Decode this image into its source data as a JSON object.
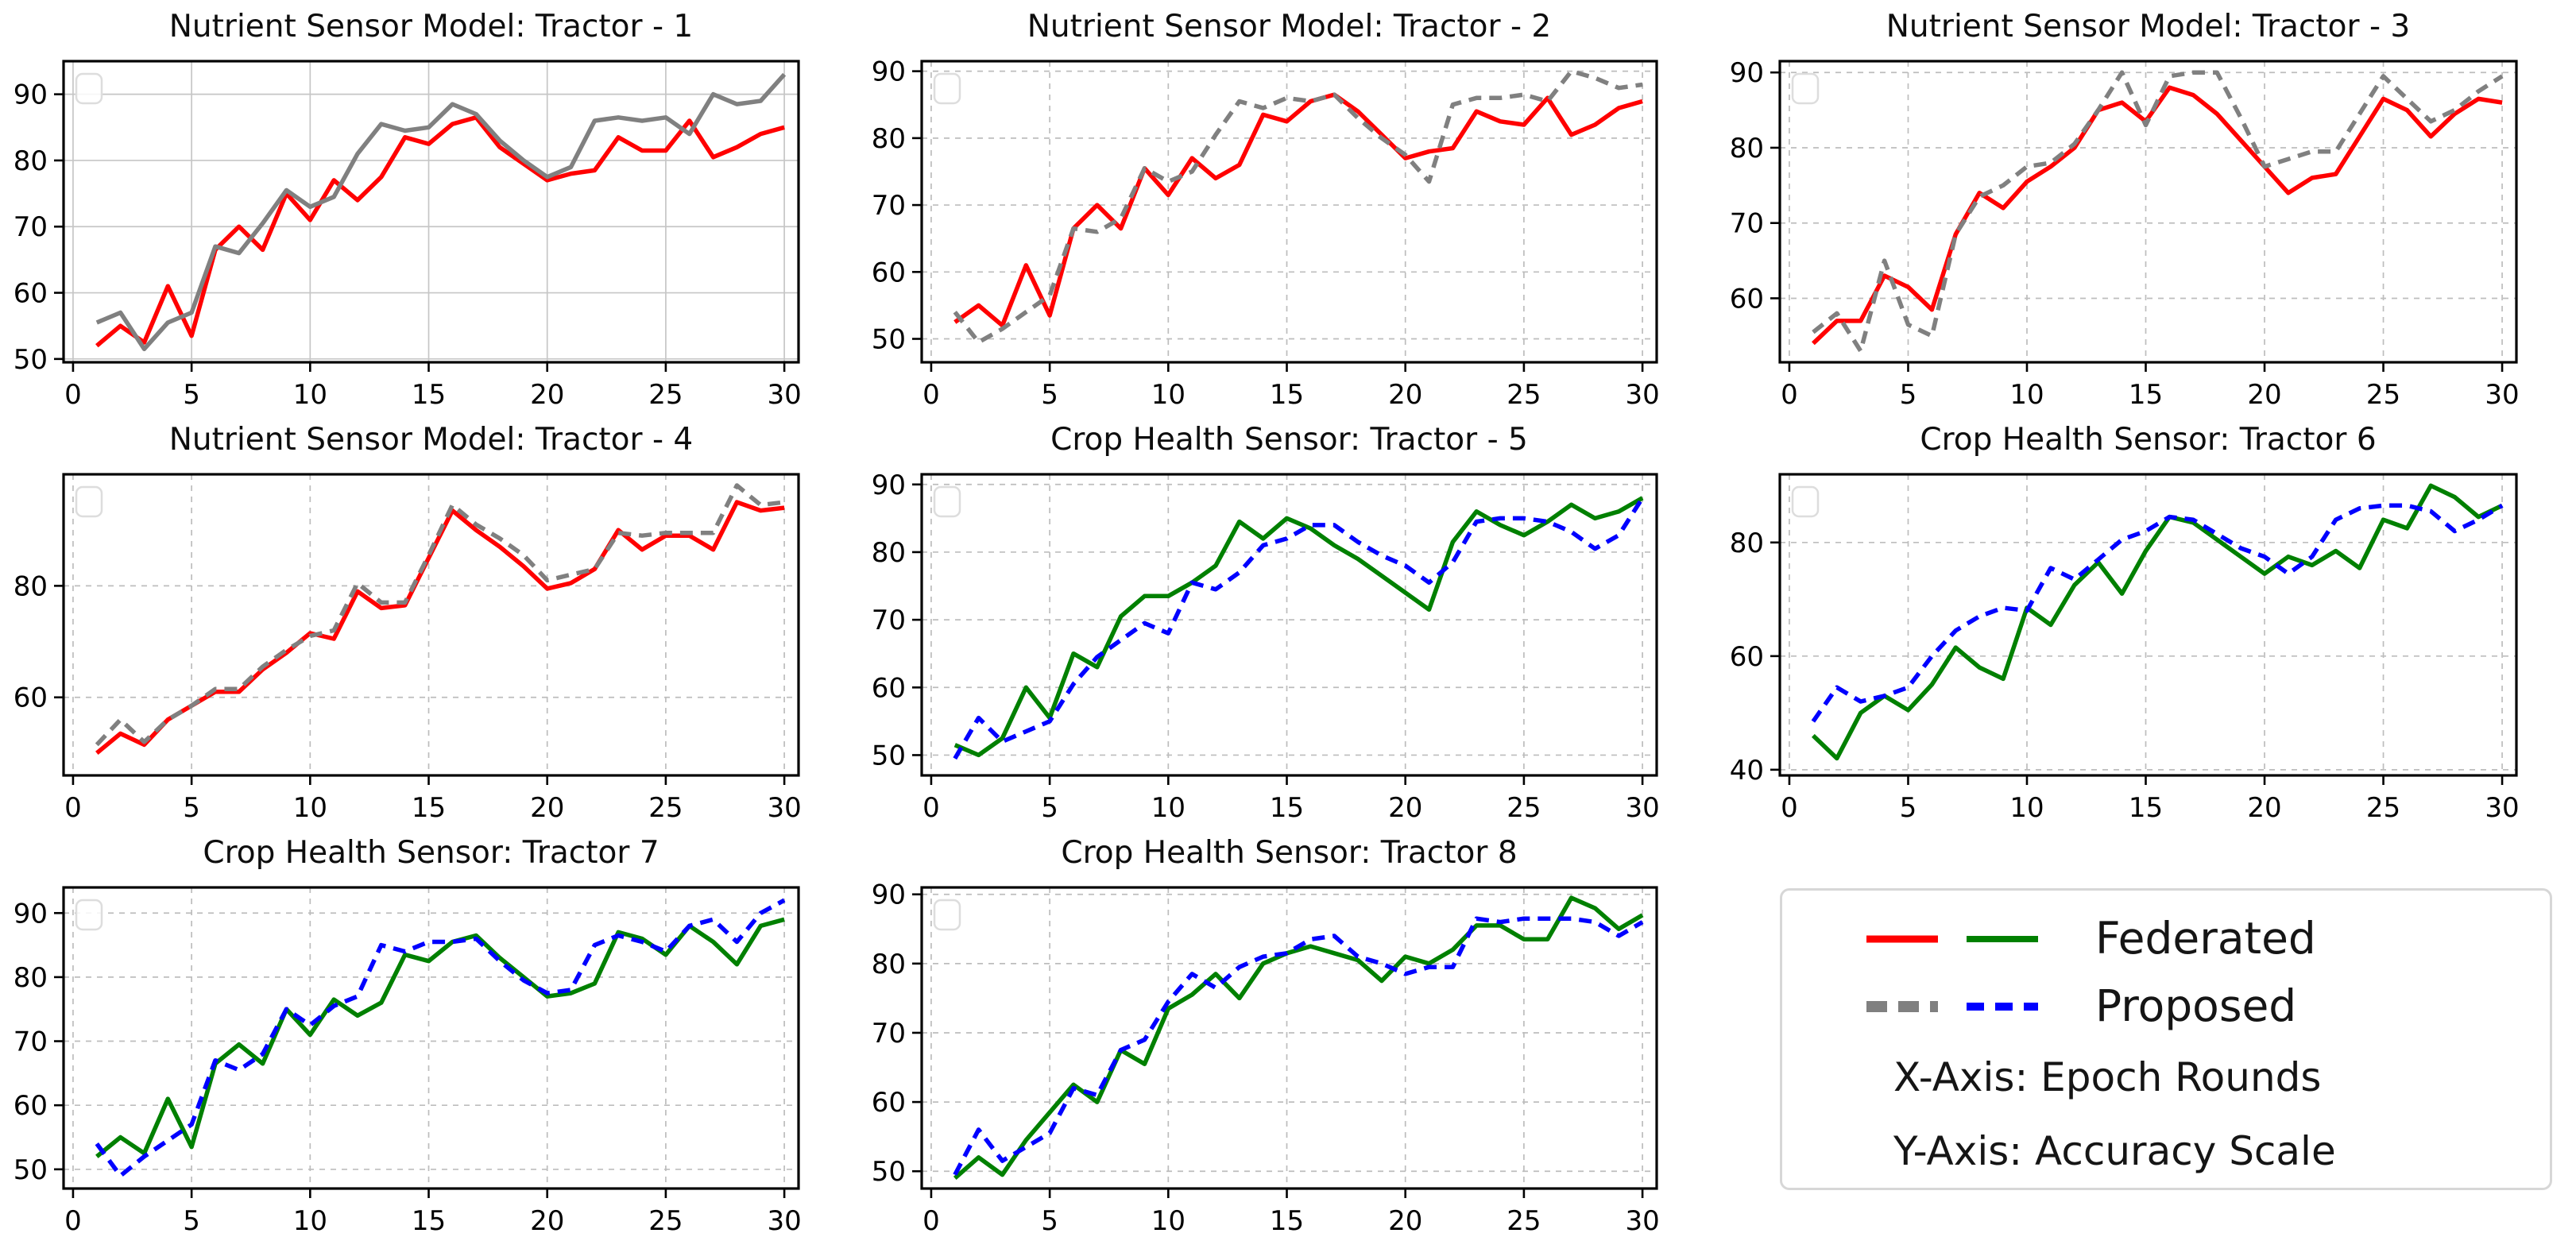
{
  "figure": {
    "x_values": [
      1,
      2,
      3,
      4,
      5,
      6,
      7,
      8,
      9,
      10,
      11,
      12,
      13,
      14,
      15,
      16,
      17,
      18,
      19,
      20,
      21,
      22,
      23,
      24,
      25,
      26,
      27,
      28,
      29,
      30
    ],
    "xticks": [
      0,
      5,
      10,
      15,
      20,
      25,
      30
    ]
  },
  "legend": {
    "federated_label": "Federated",
    "proposed_label": "Proposed",
    "xaxis_note": "X-Axis: Epoch Rounds",
    "yaxis_note": "Y-Axis: Accuracy Scale",
    "federated_color_nutrient": "#ff0000",
    "federated_color_crop": "#008000",
    "proposed_color_nutrient": "#808080",
    "proposed_color_crop": "#0000ff"
  },
  "chart_data": [
    {
      "type": "line",
      "title": "Nutrient Sensor Model: Tractor - 1",
      "ylim": [
        49.5,
        95
      ],
      "yticks": [
        50,
        60,
        70,
        80,
        90
      ],
      "xticks": [
        0,
        5,
        10,
        15,
        20,
        25,
        30
      ],
      "xlim": [
        -0.4,
        30.6
      ],
      "grid_style": "solid",
      "series": [
        {
          "name": "Federated",
          "color": "#ff0000",
          "dash": false,
          "values": [
            52,
            55,
            52.5,
            61,
            53.5,
            66.5,
            70,
            66.5,
            75,
            71,
            77,
            74,
            77.5,
            83.5,
            82.5,
            85.5,
            86.5,
            82,
            79.5,
            77,
            78,
            78.5,
            83.5,
            81.5,
            81.5,
            86,
            80.5,
            82,
            84,
            85
          ]
        },
        {
          "name": "Proposed",
          "color": "#808080",
          "dash": false,
          "values": [
            55.5,
            57,
            51.5,
            55.5,
            57,
            67,
            66,
            70.5,
            75.5,
            73,
            74.5,
            81,
            85.5,
            84.5,
            85,
            88.5,
            87,
            83,
            80,
            77.5,
            79,
            86,
            86.5,
            86,
            86.5,
            84,
            90,
            88.5,
            89,
            93
          ]
        }
      ]
    },
    {
      "type": "line",
      "title": "Nutrient Sensor Model: Tractor - 2",
      "ylim": [
        46.5,
        91.5
      ],
      "yticks": [
        50,
        60,
        70,
        80,
        90
      ],
      "xticks": [
        0,
        5,
        10,
        15,
        20,
        25,
        30
      ],
      "xlim": [
        -0.4,
        30.6
      ],
      "grid_style": "dashed",
      "series": [
        {
          "name": "Federated",
          "color": "#ff0000",
          "dash": false,
          "values": [
            52.5,
            55,
            52,
            61,
            53.5,
            66.5,
            70,
            66.5,
            75.5,
            71.5,
            77,
            74,
            76,
            83.5,
            82.5,
            85.5,
            86.5,
            84,
            80.5,
            77,
            78,
            78.5,
            84,
            82.5,
            82,
            86,
            80.5,
            82,
            84.5,
            85.5
          ]
        },
        {
          "name": "Proposed",
          "color": "#808080",
          "dash": true,
          "values": [
            54,
            49.5,
            51.5,
            54,
            56.5,
            66.5,
            66,
            68,
            75.5,
            73.5,
            75,
            80.5,
            85.5,
            84.5,
            86,
            85.5,
            86.5,
            83,
            80,
            77.5,
            73.5,
            85,
            86,
            86,
            86.5,
            85.5,
            90,
            89,
            87.5,
            88
          ]
        }
      ]
    },
    {
      "type": "line",
      "title": "Nutrient Sensor Model: Tractor - 3",
      "ylim": [
        51.5,
        91.5
      ],
      "yticks": [
        60,
        70,
        80,
        90
      ],
      "xticks": [
        0,
        5,
        10,
        15,
        20,
        25,
        30
      ],
      "xlim": [
        -0.4,
        30.6
      ],
      "grid_style": "dashed",
      "series": [
        {
          "name": "Federated",
          "color": "#ff0000",
          "dash": false,
          "values": [
            54,
            57,
            57,
            63,
            61.5,
            58.5,
            68.5,
            74,
            72,
            75.5,
            77.5,
            80,
            85,
            86,
            83.5,
            88,
            87,
            84.5,
            81,
            77.5,
            74,
            76,
            76.5,
            81.5,
            86.5,
            85,
            81.5,
            84.5,
            86.5,
            86
          ]
        },
        {
          "name": "Proposed",
          "color": "#808080",
          "dash": true,
          "values": [
            55.5,
            58,
            53,
            65,
            56.5,
            55,
            68.5,
            73.5,
            75,
            77.5,
            78,
            80.5,
            85,
            90,
            83,
            89.5,
            90,
            90,
            84,
            77.5,
            78.5,
            79.5,
            79.5,
            84.5,
            89.5,
            86.5,
            83.5,
            85,
            87.5,
            89.5
          ]
        }
      ]
    },
    {
      "type": "line",
      "title": "Nutrient Sensor Model: Tractor - 4",
      "ylim": [
        46,
        100
      ],
      "yticks": [
        60,
        80
      ],
      "xticks": [
        0,
        5,
        10,
        15,
        20,
        25,
        30
      ],
      "xlim": [
        -0.4,
        30.6
      ],
      "grid_style": "dashed",
      "series": [
        {
          "name": "Federated",
          "color": "#ff0000",
          "dash": false,
          "values": [
            50,
            53.5,
            51.5,
            56,
            58.5,
            61,
            61,
            65,
            68,
            71.5,
            70.5,
            79,
            76,
            76.5,
            85,
            93.5,
            90,
            87,
            83.5,
            79.5,
            80.5,
            83,
            90,
            86.5,
            89,
            89,
            86.5,
            95,
            93.5,
            94
          ]
        },
        {
          "name": "Proposed",
          "color": "#808080",
          "dash": true,
          "values": [
            51.5,
            56,
            52,
            56,
            58.5,
            61.5,
            61.5,
            65.5,
            68.5,
            71,
            72,
            80.5,
            77,
            77,
            85.5,
            94.5,
            91,
            88.5,
            85.5,
            81,
            82,
            83,
            89.5,
            89,
            89.5,
            89.5,
            89.5,
            98,
            94.5,
            95
          ]
        }
      ]
    },
    {
      "type": "line",
      "title": "Crop Health Sensor: Tractor - 5",
      "ylim": [
        47,
        91.5
      ],
      "yticks": [
        50,
        60,
        70,
        80,
        90
      ],
      "xticks": [
        0,
        5,
        10,
        15,
        20,
        25,
        30
      ],
      "xlim": [
        -0.4,
        30.6
      ],
      "grid_style": "dashed",
      "series": [
        {
          "name": "Federated",
          "color": "#008000",
          "dash": false,
          "values": [
            51.5,
            50,
            52.5,
            60,
            55.5,
            65,
            63,
            70.5,
            73.5,
            73.5,
            75.5,
            78,
            84.5,
            82,
            85,
            83.5,
            81,
            79,
            76.5,
            74,
            71.5,
            81.5,
            86,
            84,
            82.5,
            84.5,
            87,
            85,
            86,
            88
          ]
        },
        {
          "name": "Proposed",
          "color": "#0000ff",
          "dash": true,
          "values": [
            49.5,
            55.5,
            52,
            53.5,
            55,
            60.5,
            64.5,
            67,
            69.5,
            68,
            75.5,
            74.5,
            77,
            81,
            82,
            84,
            84,
            81.5,
            79.5,
            78,
            75.5,
            78.5,
            84.5,
            85,
            85,
            84.5,
            83,
            80.5,
            82.5,
            88
          ]
        }
      ]
    },
    {
      "type": "line",
      "title": "Crop Health Sensor: Tractor 6",
      "ylim": [
        39,
        92
      ],
      "yticks": [
        40,
        60,
        80
      ],
      "xticks": [
        0,
        5,
        10,
        15,
        20,
        25,
        30
      ],
      "xlim": [
        -0.4,
        30.6
      ],
      "grid_style": "dashed",
      "series": [
        {
          "name": "Federated",
          "color": "#008000",
          "dash": false,
          "values": [
            46,
            42,
            50,
            53,
            50.5,
            55,
            61.5,
            58,
            56,
            68.5,
            65.5,
            72.5,
            76.5,
            71,
            78.5,
            84.5,
            83.5,
            80.5,
            77.5,
            74.5,
            77.5,
            76,
            78.5,
            75.5,
            84,
            82.5,
            90,
            88,
            84.5,
            86.5
          ]
        },
        {
          "name": "Proposed",
          "color": "#0000ff",
          "dash": true,
          "values": [
            48.5,
            54.5,
            52,
            53,
            54.5,
            60,
            64.5,
            67,
            68.5,
            68,
            75.5,
            73.5,
            77,
            80.5,
            82,
            84.5,
            84,
            81.5,
            79,
            77.5,
            74.5,
            77.5,
            84,
            86,
            86.5,
            86.5,
            85.5,
            82,
            84,
            86.5
          ]
        }
      ]
    },
    {
      "type": "line",
      "title": "Crop Health Sensor: Tractor 7",
      "ylim": [
        47,
        94
      ],
      "yticks": [
        50,
        60,
        70,
        80,
        90
      ],
      "xticks": [
        0,
        5,
        10,
        15,
        20,
        25,
        30
      ],
      "xlim": [
        -0.4,
        30.6
      ],
      "grid_style": "dashed",
      "series": [
        {
          "name": "Federated",
          "color": "#008000",
          "dash": false,
          "values": [
            52,
            55,
            52.5,
            61,
            53.5,
            66.5,
            69.5,
            66.5,
            75,
            71,
            76.5,
            74,
            76,
            83.5,
            82.5,
            85.5,
            86.5,
            83,
            80,
            77,
            77.5,
            79,
            87,
            86,
            83.5,
            88,
            85.5,
            82,
            88,
            89
          ]
        },
        {
          "name": "Proposed",
          "color": "#0000ff",
          "dash": true,
          "values": [
            54,
            49,
            52,
            54.5,
            57,
            67,
            65.5,
            68,
            75,
            72.5,
            75.5,
            77,
            85,
            84,
            85.5,
            85.5,
            86,
            82.5,
            79.5,
            77.5,
            78,
            85,
            86.5,
            85.5,
            84,
            88,
            89,
            85.5,
            90,
            92
          ]
        }
      ]
    },
    {
      "type": "line",
      "title": "Crop Health Sensor: Tractor 8",
      "ylim": [
        47.5,
        91
      ],
      "yticks": [
        50,
        60,
        70,
        80,
        90
      ],
      "xticks": [
        0,
        5,
        10,
        15,
        20,
        25,
        30
      ],
      "xlim": [
        -0.4,
        30.6
      ],
      "grid_style": "dashed",
      "series": [
        {
          "name": "Federated",
          "color": "#008000",
          "dash": false,
          "values": [
            49,
            52,
            49.5,
            54.5,
            58.5,
            62.5,
            60,
            67.5,
            65.5,
            73.5,
            75.5,
            78.5,
            75,
            80,
            81.5,
            82.5,
            81.5,
            80.5,
            77.5,
            81,
            80,
            82,
            85.5,
            85.5,
            83.5,
            83.5,
            89.5,
            88,
            85,
            87
          ]
        },
        {
          "name": "Proposed",
          "color": "#0000ff",
          "dash": true,
          "values": [
            49.5,
            56,
            51.5,
            53.5,
            55.5,
            62,
            61,
            67.5,
            69,
            74.5,
            78.5,
            76.5,
            79.5,
            81,
            81.5,
            83.5,
            84,
            81,
            80,
            78.5,
            79.5,
            79.5,
            86.5,
            86,
            86.5,
            86.5,
            86.5,
            86,
            84,
            86
          ]
        }
      ]
    }
  ]
}
